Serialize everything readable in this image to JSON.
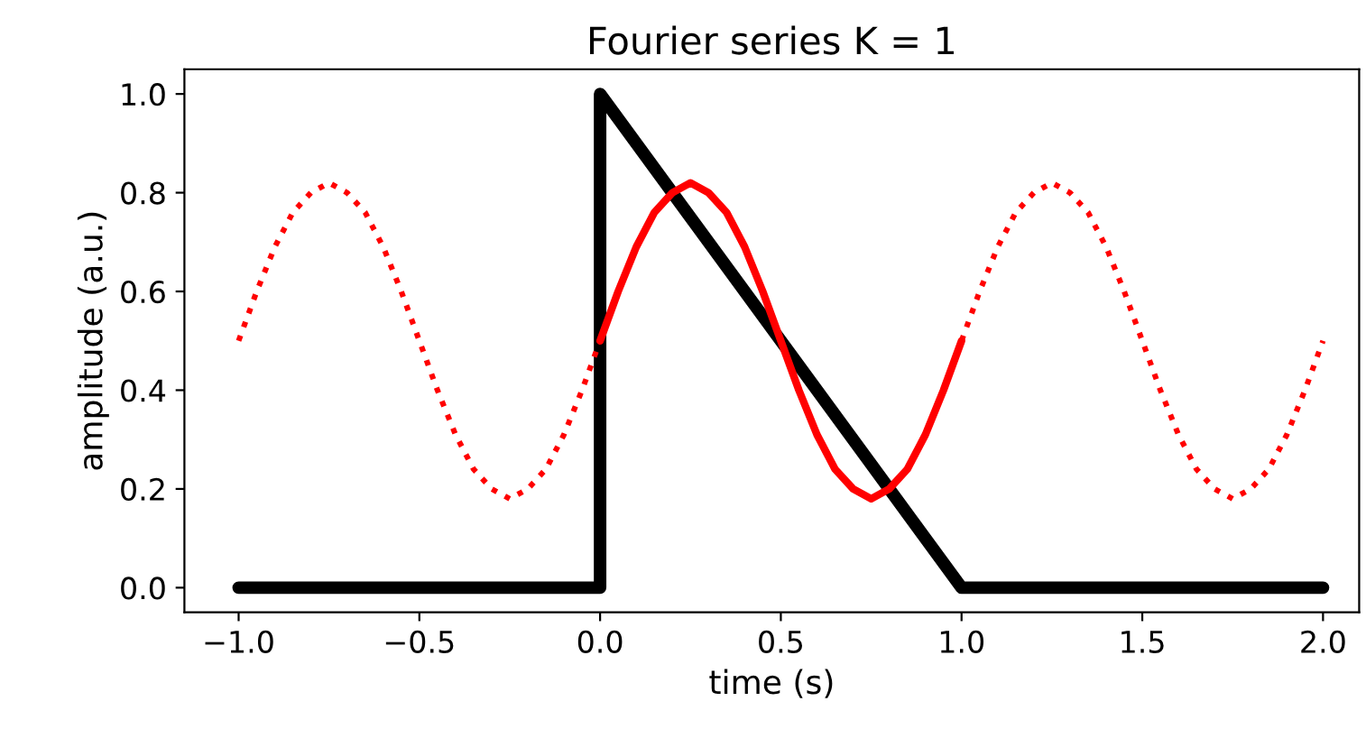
{
  "chart_data": {
    "type": "line",
    "title": "Fourier series K = 1",
    "xlabel": "time (s)",
    "ylabel": "amplitude (a.u.)",
    "series": [
      {
        "color": "#000000",
        "line_style": "solid",
        "x": [
          -1,
          0,
          0,
          1,
          2
        ],
        "values": [
          0,
          0,
          1,
          0,
          0
        ]
      },
      {
        "color": "#ff0000",
        "line_style": "dotted",
        "x": [
          -1,
          -0.95,
          -0.9,
          -0.85,
          -0.8,
          -0.75,
          -0.7,
          -0.65,
          -0.6,
          -0.55,
          -0.5,
          -0.45,
          -0.4,
          -0.35,
          -0.3,
          -0.25,
          -0.2,
          -0.15,
          -0.1,
          -0.05,
          0
        ],
        "values": [
          0.5,
          0.6,
          0.69,
          0.76,
          0.8,
          0.82,
          0.8,
          0.76,
          0.69,
          0.6,
          0.5,
          0.4,
          0.31,
          0.24,
          0.2,
          0.18,
          0.2,
          0.24,
          0.31,
          0.4,
          0.5
        ]
      },
      {
        "color": "#ff0000",
        "line_style": "solid",
        "x": [
          0,
          0.05,
          0.1,
          0.15,
          0.2,
          0.25,
          0.3,
          0.35,
          0.4,
          0.45,
          0.5,
          0.55,
          0.6,
          0.65,
          0.7,
          0.75,
          0.8,
          0.85,
          0.9,
          0.95,
          1
        ],
        "values": [
          0.5,
          0.6,
          0.69,
          0.76,
          0.8,
          0.82,
          0.8,
          0.76,
          0.69,
          0.6,
          0.5,
          0.4,
          0.31,
          0.24,
          0.2,
          0.18,
          0.2,
          0.24,
          0.31,
          0.4,
          0.5
        ]
      },
      {
        "color": "#ff0000",
        "line_style": "dotted",
        "x": [
          1,
          1.05,
          1.1,
          1.15,
          1.2,
          1.25,
          1.3,
          1.35,
          1.4,
          1.45,
          1.5,
          1.55,
          1.6,
          1.65,
          1.7,
          1.75,
          1.8,
          1.85,
          1.9,
          1.95,
          2
        ],
        "values": [
          0.5,
          0.6,
          0.69,
          0.76,
          0.8,
          0.82,
          0.8,
          0.76,
          0.69,
          0.6,
          0.5,
          0.4,
          0.31,
          0.24,
          0.2,
          0.18,
          0.2,
          0.24,
          0.31,
          0.4,
          0.5
        ]
      }
    ],
    "xlim": [
      -1.15,
      2.1
    ],
    "ylim": [
      -0.05,
      1.05
    ],
    "xticks": [
      {
        "value": -1,
        "label": "−1.0"
      },
      {
        "value": -0.5,
        "label": "−0.5"
      },
      {
        "value": 0,
        "label": "0.0"
      },
      {
        "value": 0.5,
        "label": "0.5"
      },
      {
        "value": 1,
        "label": "1.0"
      },
      {
        "value": 1.5,
        "label": "1.5"
      },
      {
        "value": 2,
        "label": "2.0"
      }
    ],
    "yticks": [
      {
        "value": 0,
        "label": "0.0"
      },
      {
        "value": 0.2,
        "label": "0.2"
      },
      {
        "value": 0.4,
        "label": "0.4"
      },
      {
        "value": 0.6,
        "label": "0.6"
      },
      {
        "value": 0.8,
        "label": "0.8"
      },
      {
        "value": 1,
        "label": "1.0"
      }
    ],
    "grid": false,
    "legend": false
  }
}
